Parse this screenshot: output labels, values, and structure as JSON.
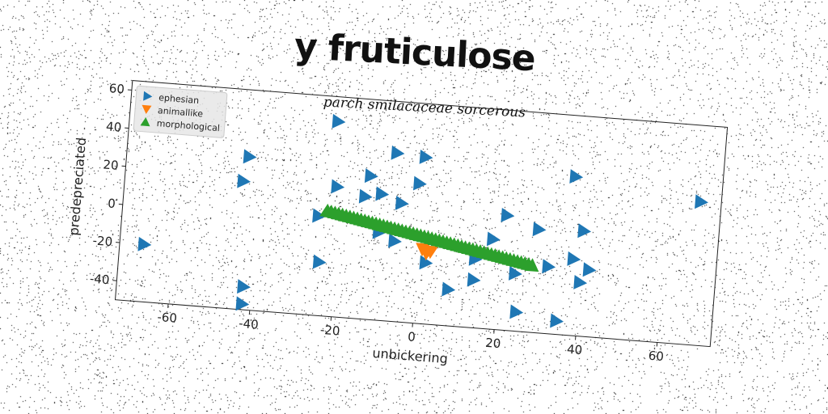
{
  "chart_data": {
    "type": "scatter",
    "title": "y fruticulose",
    "subtitle": "parch smilacaceae sorcerous",
    "xlabel": "unbickering",
    "ylabel": "predepreciated",
    "xlim": [
      -73,
      73
    ],
    "ylim": [
      -50,
      65
    ],
    "xticks": [
      -60,
      -40,
      -20,
      0,
      20,
      40,
      60
    ],
    "yticks": [
      -40,
      -20,
      0,
      20,
      40,
      60
    ],
    "grid": false,
    "legend_position": "top-left",
    "series": [
      {
        "name": "ephesian",
        "marker": "triangle-right",
        "color": "#1f77b4",
        "points": [
          [
            -22,
            52
          ],
          [
            -43,
            30
          ],
          [
            -44,
            17
          ],
          [
            -67,
            -20
          ],
          [
            -42,
            -38
          ],
          [
            -42,
            -47
          ],
          [
            -24,
            -22
          ],
          [
            -21,
            18
          ],
          [
            -13,
            25
          ],
          [
            -14,
            14
          ],
          [
            -10,
            16
          ],
          [
            -7,
            38
          ],
          [
            -5,
            12
          ],
          [
            -1,
            23
          ],
          [
            0,
            37
          ],
          [
            2,
            -18
          ],
          [
            8,
            -31
          ],
          [
            14,
            -14
          ],
          [
            14,
            -25
          ],
          [
            18,
            -3
          ],
          [
            21,
            10
          ],
          [
            24,
            -20
          ],
          [
            25,
            -40
          ],
          [
            29,
            4
          ],
          [
            32,
            -15
          ],
          [
            35,
            -43
          ],
          [
            37,
            33
          ],
          [
            38,
            -10
          ],
          [
            40,
            5
          ],
          [
            40,
            -22
          ],
          [
            42,
            -15
          ],
          [
            68,
            25
          ],
          [
            -25,
            2
          ],
          [
            -10,
            -4
          ],
          [
            -6,
            -8
          ]
        ]
      },
      {
        "name": "animallike",
        "marker": "triangle-down",
        "color": "#ff7f0e",
        "points": [
          [
            1,
            -11
          ],
          [
            2,
            -13
          ],
          [
            3,
            -12
          ]
        ]
      },
      {
        "name": "morphological",
        "marker": "triangle-up",
        "color": "#2ca02c",
        "line_from": [
          -23,
          5
        ],
        "line_to": [
          28,
          -15
        ],
        "count": 56
      }
    ]
  }
}
